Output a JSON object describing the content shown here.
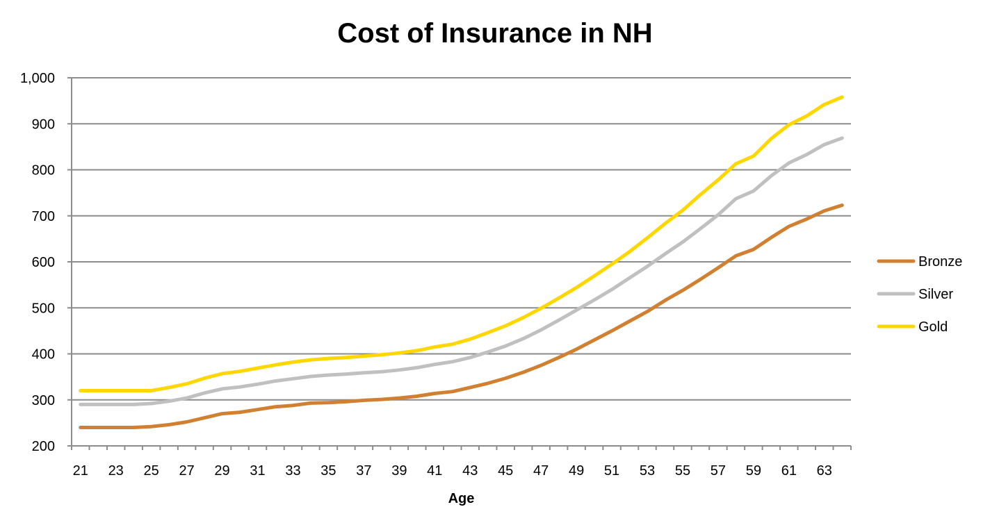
{
  "chart_data": {
    "type": "line",
    "title": "Cost of Insurance in NH",
    "xlabel": "Age",
    "ylabel": "",
    "ylim": [
      200,
      1000
    ],
    "yticks": [
      200,
      300,
      400,
      500,
      600,
      700,
      800,
      900,
      1000
    ],
    "ytick_labels": [
      "200",
      "300",
      "400",
      "500",
      "600",
      "700",
      "800",
      "900",
      "1,000"
    ],
    "grid": true,
    "legend_position": "right",
    "x": [
      21,
      22,
      23,
      24,
      25,
      26,
      27,
      28,
      29,
      30,
      31,
      32,
      33,
      34,
      35,
      36,
      37,
      38,
      39,
      40,
      41,
      42,
      43,
      44,
      45,
      46,
      47,
      48,
      49,
      50,
      51,
      52,
      53,
      54,
      55,
      56,
      57,
      58,
      59,
      60,
      61,
      62,
      63,
      64
    ],
    "xtick_labels": [
      "21",
      "23",
      "25",
      "27",
      "29",
      "31",
      "33",
      "35",
      "37",
      "39",
      "41",
      "43",
      "45",
      "47",
      "49",
      "51",
      "53",
      "55",
      "57",
      "59",
      "61",
      "63"
    ],
    "series": [
      {
        "name": "Bronze",
        "color": "#D08030",
        "values": [
          240,
          240,
          240,
          240,
          242,
          246,
          252,
          261,
          270,
          273,
          279,
          285,
          288,
          293,
          294,
          296,
          299,
          301,
          304,
          308,
          314,
          318,
          327,
          336,
          347,
          360,
          375,
          392,
          410,
          430,
          450,
          471,
          492,
          516,
          538,
          562,
          587,
          613,
          627,
          653,
          677,
          693,
          711,
          723
        ]
      },
      {
        "name": "Silver",
        "color": "#C0C0C0",
        "values": [
          290,
          290,
          290,
          290,
          292,
          297,
          304,
          315,
          324,
          328,
          334,
          341,
          346,
          351,
          354,
          356,
          359,
          361,
          365,
          370,
          377,
          383,
          392,
          404,
          417,
          433,
          452,
          473,
          495,
          517,
          540,
          565,
          590,
          617,
          643,
          672,
          702,
          737,
          754,
          787,
          815,
          833,
          855,
          869
        ]
      },
      {
        "name": "Gold",
        "color": "#FFD700",
        "values": [
          320,
          320,
          320,
          320,
          320,
          327,
          335,
          347,
          357,
          362,
          369,
          376,
          382,
          387,
          390,
          392,
          395,
          398,
          402,
          407,
          415,
          421,
          432,
          446,
          461,
          479,
          499,
          521,
          544,
          569,
          595,
          622,
          652,
          683,
          712,
          746,
          778,
          813,
          830,
          868,
          898,
          917,
          942,
          958
        ]
      }
    ]
  }
}
